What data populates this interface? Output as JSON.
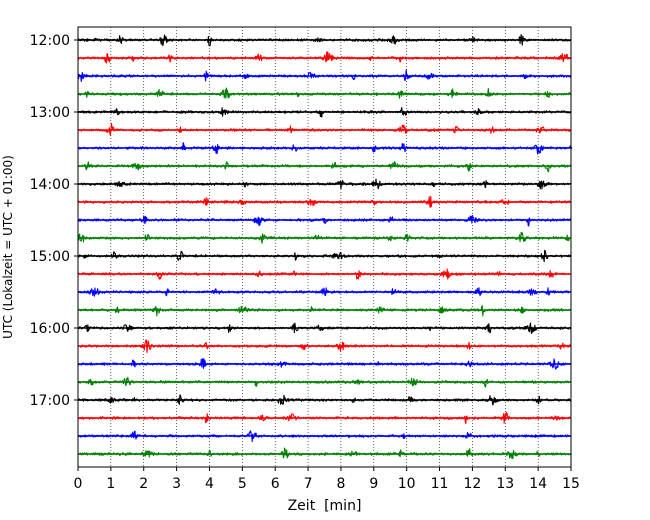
{
  "chart_data": {
    "type": "line",
    "title": "",
    "xlabel": "Zeit  [min]",
    "ylabel": "UTC (Lokalzeit = UTC + 01:00)",
    "xlim": [
      0,
      15
    ],
    "x_ticks": [
      "0",
      "1",
      "2",
      "3",
      "4",
      "5",
      "6",
      "7",
      "8",
      "9",
      "10",
      "11",
      "12",
      "13",
      "14",
      "15"
    ],
    "y_ticks": [
      "12:00",
      "13:00",
      "14:00",
      "15:00",
      "16:00",
      "17:00"
    ],
    "grid": "vertical dotted",
    "trace_interval_min": 15,
    "trace_colors": [
      "#000000",
      "#ff0000",
      "#0000ff",
      "#008000"
    ],
    "traces": [
      {
        "start": "12:00",
        "color": "#000000",
        "events": [
          0.5,
          1.3,
          2.6,
          4.0,
          7.3,
          9.6,
          12.0,
          13.5
        ]
      },
      {
        "start": "12:15",
        "color": "#ff0000",
        "events": [
          0.9,
          1.7,
          2.8,
          5.5,
          7.6,
          8.9,
          9.8,
          14.8
        ]
      },
      {
        "start": "12:30",
        "color": "#0000ff",
        "events": [
          0.1,
          3.9,
          5.1,
          7.1,
          8.4,
          10.0,
          10.7,
          13.6
        ]
      },
      {
        "start": "12:45",
        "color": "#008000",
        "events": [
          0.3,
          2.5,
          4.5,
          6.7,
          9.8,
          11.4,
          12.5,
          14.3
        ]
      },
      {
        "start": "13:00",
        "color": "#000000",
        "events": [
          1.2,
          4.4,
          7.4,
          9.9,
          12.2
        ]
      },
      {
        "start": "13:15",
        "color": "#ff0000",
        "events": [
          1.0,
          3.1,
          6.5,
          9.9,
          11.5,
          12.6,
          14.1
        ]
      },
      {
        "start": "13:30",
        "color": "#0000ff",
        "events": [
          3.2,
          4.2,
          6.6,
          9.0,
          9.9,
          14.0,
          15.0
        ]
      },
      {
        "start": "13:45",
        "color": "#008000",
        "events": [
          0.3,
          1.8,
          4.5,
          7.8,
          9.6,
          11.9,
          14.3
        ]
      },
      {
        "start": "14:00",
        "color": "#000000",
        "events": [
          1.3,
          5.1,
          8.0,
          9.1,
          10.8,
          12.4,
          14.1
        ]
      },
      {
        "start": "14:15",
        "color": "#ff0000",
        "events": [
          3.9,
          5.0,
          7.1,
          9.0,
          10.7,
          13.0
        ]
      },
      {
        "start": "14:30",
        "color": "#0000ff",
        "events": [
          2.0,
          5.5,
          7.5,
          9.5,
          12.0,
          13.7
        ]
      },
      {
        "start": "14:45",
        "color": "#008000",
        "events": [
          0.1,
          2.1,
          5.6,
          7.3,
          9.5,
          10.0,
          13.5,
          14.9
        ]
      },
      {
        "start": "15:00",
        "color": "#000000",
        "events": [
          0.2,
          1.1,
          3.1,
          6.6,
          7.8,
          8.0,
          11.0,
          14.2
        ]
      },
      {
        "start": "15:15",
        "color": "#ff0000",
        "events": [
          2.5,
          5.5,
          6.6,
          8.5,
          11.2,
          12.8,
          14.4
        ]
      },
      {
        "start": "15:30",
        "color": "#0000ff",
        "events": [
          0.5,
          2.7,
          4.2,
          7.5,
          9.6,
          12.2,
          13.8,
          14.3
        ]
      },
      {
        "start": "15:45",
        "color": "#008000",
        "events": [
          1.2,
          2.4,
          5.0,
          7.1,
          9.2,
          11.1,
          12.3,
          13.5
        ]
      },
      {
        "start": "16:00",
        "color": "#000000",
        "events": [
          0.3,
          1.5,
          4.6,
          6.6,
          7.4,
          10.7,
          12.5,
          13.8
        ]
      },
      {
        "start": "16:15",
        "color": "#ff0000",
        "events": [
          2.1,
          3.9,
          6.9,
          8.0,
          11.9,
          14.7
        ]
      },
      {
        "start": "16:30",
        "color": "#0000ff",
        "events": [
          1.7,
          3.8,
          6.2,
          9.1,
          11.9,
          14.5
        ]
      },
      {
        "start": "16:45",
        "color": "#008000",
        "events": [
          0.4,
          1.5,
          5.4,
          8.5,
          10.2,
          12.4
        ]
      },
      {
        "start": "17:00",
        "color": "#000000",
        "events": [
          1.0,
          1.7,
          3.1,
          6.2,
          8.4,
          10.1,
          12.6,
          14.0
        ]
      },
      {
        "start": "17:15",
        "color": "#ff0000",
        "events": [
          3.9,
          5.6,
          6.5,
          11.8,
          13.0,
          14.6
        ]
      },
      {
        "start": "17:30",
        "color": "#0000ff",
        "events": [
          1.7,
          5.3,
          9.9,
          11.9
        ]
      },
      {
        "start": "17:45",
        "color": "#008000",
        "events": [
          2.1,
          4.0,
          6.3,
          8.4,
          9.8,
          11.9,
          13.2,
          14.0
        ]
      }
    ]
  }
}
